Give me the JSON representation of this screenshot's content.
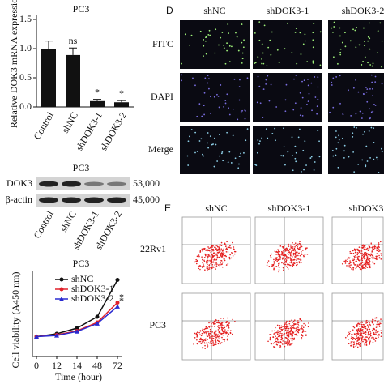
{
  "chart_data": [
    {
      "type": "bar",
      "title": "PC3",
      "y_label": "Relative DOK3 mRNA expression",
      "categories": [
        "Control",
        "shNC",
        "shDOK3-1",
        "shDOK3-2"
      ],
      "values": [
        1.0,
        0.89,
        0.1,
        0.08
      ],
      "errors": [
        0.13,
        0.12,
        0.03,
        0.03
      ],
      "annotations": [
        null,
        "ns",
        "*",
        "*"
      ],
      "color": "#111111",
      "ylim": [
        0,
        1.5
      ],
      "yticks": [
        {
          "value": 0,
          "label": "0.0"
        },
        {
          "value": 0.5,
          "label": "0.5"
        },
        {
          "value": 1,
          "label": "1.0"
        },
        {
          "value": 1.5,
          "label": "1.5"
        }
      ]
    },
    {
      "type": "line",
      "title": "PC3",
      "x_label": "Time (hour)",
      "y_label": "Cell viability (A450 nm)",
      "categories": [
        "0",
        "12",
        "14",
        "48",
        "72"
      ],
      "series": [
        {
          "name": "shNC",
          "color": "#111111",
          "marker": "circle",
          "values": [
            0.35,
            0.4,
            0.5,
            0.7,
            1.35
          ]
        },
        {
          "name": "shDOK3-1",
          "color": "#e0202a",
          "marker": "circle",
          "values": [
            0.35,
            0.38,
            0.45,
            0.6,
            0.95
          ],
          "annotation": "*"
        },
        {
          "name": "shDOK3-2",
          "color": "#2a2ad0",
          "marker": "triangle",
          "values": [
            0.35,
            0.37,
            0.44,
            0.58,
            0.88
          ],
          "annotation": "*"
        }
      ],
      "ylim": [
        0,
        1.5
      ]
    }
  ],
  "western_blot": {
    "title": "PC3",
    "rows": [
      {
        "label": "DOK3",
        "size": "53,000"
      },
      {
        "label": "β-actin",
        "size": "45,000"
      }
    ],
    "lanes": [
      "Control",
      "shNC",
      "shDOK3-1",
      "shDOK3-2"
    ]
  },
  "microscopy": {
    "panel": "D",
    "columns": [
      "shNC",
      "shDOK3-1",
      "shDOK3-2"
    ],
    "rows": [
      "FITC",
      "DAPI",
      "Merge"
    ]
  },
  "flow_cytometry": {
    "panel": "E",
    "columns": [
      "shNC",
      "shDOK3-1",
      "shDOK3"
    ],
    "rows": [
      "22Rv1",
      "PC3"
    ]
  }
}
